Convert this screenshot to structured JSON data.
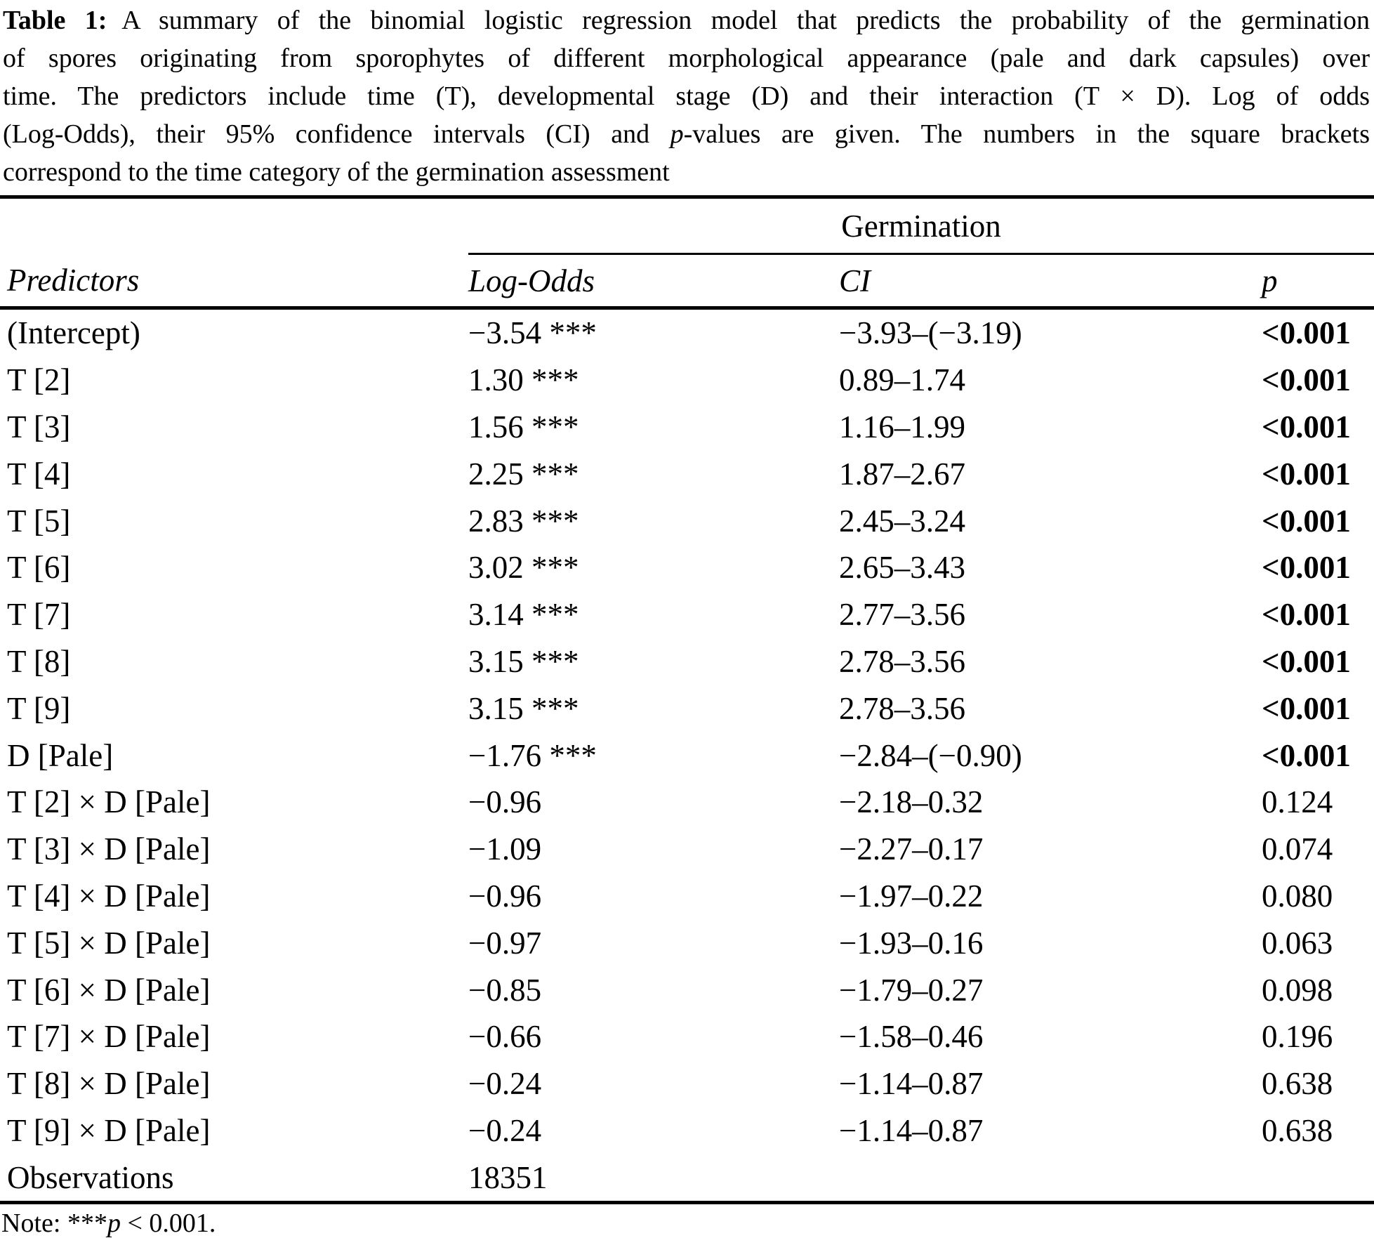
{
  "colors": {
    "text": "#000000",
    "background": "#ffffff"
  },
  "caption": {
    "label": "Table 1:",
    "line1_rest": "A summary of the binomial logistic regression model that predicts the probability of the germination",
    "line2": "of spores originating from sporophytes of different morphological appearance (pale and dark capsules) over",
    "line3": "time. The predictors include time (T), developmental stage (D) and their interaction (T × D). Log of odds",
    "line4_a": "(Log-Odds), their 95% confidence intervals (CI) and ",
    "line4_italic": "p",
    "line4_b": "-values are given. The numbers in the square brackets",
    "line5": "correspond to the time category of the germination assessment"
  },
  "table": {
    "group_header": "Germination",
    "columns": {
      "predictors": "Predictors",
      "log_odds": "Log-Odds",
      "ci": "CI",
      "p": "p"
    },
    "rows": [
      {
        "label": "(Intercept)",
        "log_odds": "−3.54 ***",
        "ci": "−3.93–(−3.19)",
        "p": "<0.001"
      },
      {
        "label": "T [2]",
        "log_odds": "1.30 ***",
        "ci": "0.89–1.74",
        "p": "<0.001"
      },
      {
        "label": "T [3]",
        "log_odds": "1.56 ***",
        "ci": "1.16–1.99",
        "p": "<0.001"
      },
      {
        "label": "T [4]",
        "log_odds": "2.25 ***",
        "ci": "1.87–2.67",
        "p": "<0.001"
      },
      {
        "label": "T [5]",
        "log_odds": "2.83 ***",
        "ci": "2.45–3.24",
        "p": "<0.001"
      },
      {
        "label": "T [6]",
        "log_odds": "3.02 ***",
        "ci": "2.65–3.43",
        "p": "<0.001"
      },
      {
        "label": "T [7]",
        "log_odds": "3.14 ***",
        "ci": "2.77–3.56",
        "p": "<0.001"
      },
      {
        "label": "T [8]",
        "log_odds": "3.15 ***",
        "ci": "2.78–3.56",
        "p": "<0.001"
      },
      {
        "label": "T [9]",
        "log_odds": "3.15 ***",
        "ci": "2.78–3.56",
        "p": "<0.001"
      },
      {
        "label": "D [Pale]",
        "log_odds": "−1.76 ***",
        "ci": "−2.84–(−0.90)",
        "p": "<0.001"
      },
      {
        "label": "T [2] × D [Pale]",
        "log_odds": "−0.96",
        "ci": "−2.18–0.32",
        "p": "0.124"
      },
      {
        "label": "T [3] × D [Pale]",
        "log_odds": "−1.09",
        "ci": "−2.27–0.17",
        "p": "0.074"
      },
      {
        "label": "T [4] × D [Pale]",
        "log_odds": "−0.96",
        "ci": "−1.97–0.22",
        "p": "0.080"
      },
      {
        "label": "T [5] × D [Pale]",
        "log_odds": "−0.97",
        "ci": "−1.93–0.16",
        "p": "0.063"
      },
      {
        "label": "T [6] × D [Pale]",
        "log_odds": "−0.85",
        "ci": "−1.79–0.27",
        "p": "0.098"
      },
      {
        "label": "T [7] × D [Pale]",
        "log_odds": "−0.66",
        "ci": "−1.58–0.46",
        "p": "0.196"
      },
      {
        "label": "T [8] × D [Pale]",
        "log_odds": "−0.24",
        "ci": "−1.14–0.87",
        "p": "0.638"
      },
      {
        "label": "T [9] × D [Pale]",
        "log_odds": "−0.24",
        "ci": "−1.14–0.87",
        "p": "0.638"
      }
    ],
    "observations": {
      "label": "Observations",
      "value": "18351"
    }
  },
  "note": {
    "prefix": "Note: ",
    "stars": "***",
    "p_symbol": "p",
    "rest": " < 0.001."
  }
}
